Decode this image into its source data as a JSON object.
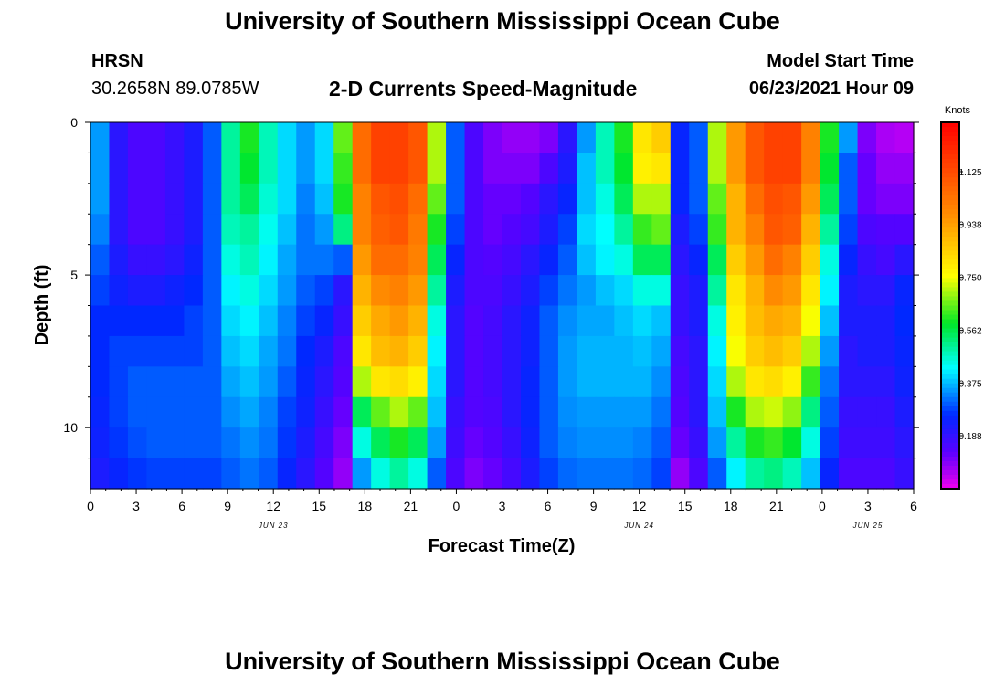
{
  "page": {
    "title_top": "University of Southern Mississippi Ocean Cube",
    "title_bottom": "University of Southern Mississippi Ocean Cube",
    "station_name": "HRSN",
    "station_coords": "30.2658N  89.0785W",
    "plot_title": "2-D Currents Speed-Magnitude",
    "model_start_label": "Model Start Time",
    "model_start_value": "06/23/2021 Hour 09"
  },
  "chart_data": {
    "type": "heatmap",
    "title": "2-D Currents Speed-Magnitude",
    "xlabel": "Forecast Time(Z)",
    "ylabel": "Depth (ft)",
    "x_tick_labels": [
      "0",
      "3",
      "6",
      "9",
      "12",
      "15",
      "18",
      "21",
      "0",
      "3",
      "6",
      "9",
      "12",
      "15",
      "18",
      "21",
      "0",
      "3",
      "6"
    ],
    "x_hours": [
      0,
      3,
      6,
      9,
      12,
      15,
      18,
      21,
      24,
      27,
      30,
      33,
      36,
      39,
      42,
      45,
      48,
      51,
      54
    ],
    "xlim": [
      0,
      54
    ],
    "day_labels": [
      {
        "label": "JUN 23",
        "hour": 12
      },
      {
        "label": "JUN 24",
        "hour": 36
      },
      {
        "label": "JUN 25",
        "hour": 51
      }
    ],
    "y_tick_labels": [
      "0",
      "5",
      "10"
    ],
    "y_tick_values": [
      0,
      5,
      10
    ],
    "ylim": [
      0,
      12
    ],
    "depths": [
      0,
      1,
      2,
      3,
      4,
      5,
      6,
      7,
      8,
      9,
      10,
      11
    ],
    "colorbar": {
      "title": "Knots",
      "min": 0,
      "max": 1.3,
      "tick_labels": [
        "0.188",
        "0.375",
        "0.562",
        "0.750",
        "0.938",
        "1.125"
      ],
      "tick_values": [
        0.188,
        0.375,
        0.562,
        0.75,
        0.938,
        1.125
      ]
    },
    "values": [
      [
        0.35,
        0.2,
        0.15,
        0.15,
        0.18,
        0.22,
        0.3,
        0.5,
        0.6,
        0.48,
        0.4,
        0.35,
        0.4,
        0.65,
        1.05,
        1.15,
        1.15,
        1.1,
        0.7,
        0.3,
        0.15,
        0.1,
        0.08,
        0.08,
        0.1,
        0.2,
        0.35,
        0.48,
        0.6,
        0.8,
        0.85,
        0.25,
        0.3,
        0.7,
        0.95,
        1.1,
        1.15,
        1.15,
        1.0,
        0.6,
        0.35,
        0.1,
        0.06,
        0.05
      ],
      [
        0.35,
        0.2,
        0.15,
        0.15,
        0.18,
        0.22,
        0.3,
        0.5,
        0.58,
        0.48,
        0.4,
        0.35,
        0.4,
        0.62,
        1.05,
        1.15,
        1.15,
        1.1,
        0.7,
        0.3,
        0.15,
        0.1,
        0.1,
        0.1,
        0.15,
        0.22,
        0.38,
        0.48,
        0.58,
        0.78,
        0.8,
        0.25,
        0.3,
        0.7,
        0.95,
        1.1,
        1.15,
        1.15,
        1.0,
        0.58,
        0.3,
        0.12,
        0.08,
        0.08
      ],
      [
        0.35,
        0.2,
        0.15,
        0.15,
        0.18,
        0.22,
        0.3,
        0.5,
        0.55,
        0.46,
        0.4,
        0.33,
        0.38,
        0.6,
        1.0,
        1.1,
        1.12,
        1.05,
        0.65,
        0.3,
        0.15,
        0.12,
        0.12,
        0.14,
        0.2,
        0.25,
        0.38,
        0.45,
        0.55,
        0.7,
        0.7,
        0.25,
        0.3,
        0.65,
        0.9,
        1.05,
        1.12,
        1.1,
        0.95,
        0.55,
        0.3,
        0.12,
        0.1,
        0.1
      ],
      [
        0.33,
        0.2,
        0.15,
        0.15,
        0.18,
        0.22,
        0.3,
        0.48,
        0.5,
        0.44,
        0.38,
        0.32,
        0.35,
        0.52,
        1.0,
        1.08,
        1.1,
        1.02,
        0.6,
        0.28,
        0.15,
        0.12,
        0.14,
        0.16,
        0.22,
        0.28,
        0.4,
        0.43,
        0.5,
        0.62,
        0.65,
        0.22,
        0.28,
        0.62,
        0.9,
        1.0,
        1.1,
        1.08,
        0.9,
        0.5,
        0.28,
        0.15,
        0.14,
        0.14
      ],
      [
        0.3,
        0.22,
        0.18,
        0.18,
        0.2,
        0.24,
        0.3,
        0.45,
        0.48,
        0.42,
        0.36,
        0.32,
        0.32,
        0.3,
        0.95,
        1.05,
        1.05,
        1.0,
        0.55,
        0.25,
        0.15,
        0.14,
        0.16,
        0.2,
        0.25,
        0.3,
        0.38,
        0.42,
        0.45,
        0.55,
        0.55,
        0.2,
        0.25,
        0.55,
        0.85,
        0.95,
        1.05,
        1.0,
        0.85,
        0.45,
        0.25,
        0.18,
        0.16,
        0.2
      ],
      [
        0.28,
        0.24,
        0.22,
        0.22,
        0.24,
        0.26,
        0.3,
        0.42,
        0.45,
        0.4,
        0.35,
        0.3,
        0.28,
        0.2,
        0.9,
        0.98,
        1.0,
        0.95,
        0.5,
        0.22,
        0.15,
        0.15,
        0.18,
        0.22,
        0.28,
        0.32,
        0.35,
        0.38,
        0.4,
        0.45,
        0.45,
        0.18,
        0.22,
        0.5,
        0.8,
        0.9,
        0.98,
        0.95,
        0.8,
        0.42,
        0.22,
        0.2,
        0.2,
        0.25
      ],
      [
        0.26,
        0.26,
        0.26,
        0.26,
        0.26,
        0.28,
        0.3,
        0.4,
        0.42,
        0.38,
        0.33,
        0.28,
        0.25,
        0.18,
        0.85,
        0.92,
        0.95,
        0.9,
        0.45,
        0.2,
        0.14,
        0.16,
        0.2,
        0.24,
        0.3,
        0.34,
        0.36,
        0.36,
        0.38,
        0.4,
        0.38,
        0.18,
        0.22,
        0.45,
        0.78,
        0.88,
        0.92,
        0.9,
        0.75,
        0.38,
        0.22,
        0.22,
        0.22,
        0.26
      ],
      [
        0.26,
        0.28,
        0.28,
        0.28,
        0.28,
        0.28,
        0.3,
        0.38,
        0.4,
        0.36,
        0.32,
        0.26,
        0.22,
        0.15,
        0.8,
        0.88,
        0.9,
        0.85,
        0.42,
        0.2,
        0.14,
        0.16,
        0.2,
        0.24,
        0.3,
        0.35,
        0.37,
        0.37,
        0.37,
        0.38,
        0.36,
        0.16,
        0.2,
        0.42,
        0.75,
        0.85,
        0.88,
        0.85,
        0.7,
        0.35,
        0.2,
        0.22,
        0.22,
        0.25
      ],
      [
        0.26,
        0.28,
        0.3,
        0.3,
        0.3,
        0.3,
        0.3,
        0.36,
        0.38,
        0.35,
        0.3,
        0.25,
        0.2,
        0.14,
        0.7,
        0.8,
        0.82,
        0.78,
        0.4,
        0.2,
        0.14,
        0.16,
        0.2,
        0.25,
        0.3,
        0.35,
        0.37,
        0.37,
        0.37,
        0.37,
        0.34,
        0.15,
        0.2,
        0.4,
        0.7,
        0.8,
        0.82,
        0.78,
        0.62,
        0.32,
        0.2,
        0.2,
        0.2,
        0.24
      ],
      [
        0.25,
        0.28,
        0.3,
        0.3,
        0.3,
        0.3,
        0.3,
        0.34,
        0.36,
        0.33,
        0.28,
        0.24,
        0.18,
        0.12,
        0.55,
        0.65,
        0.7,
        0.65,
        0.38,
        0.18,
        0.14,
        0.15,
        0.2,
        0.25,
        0.3,
        0.34,
        0.35,
        0.35,
        0.35,
        0.35,
        0.32,
        0.14,
        0.2,
        0.38,
        0.6,
        0.7,
        0.72,
        0.68,
        0.52,
        0.3,
        0.18,
        0.18,
        0.18,
        0.22
      ],
      [
        0.24,
        0.27,
        0.29,
        0.3,
        0.3,
        0.3,
        0.3,
        0.32,
        0.34,
        0.32,
        0.27,
        0.22,
        0.16,
        0.1,
        0.45,
        0.55,
        0.6,
        0.55,
        0.35,
        0.17,
        0.12,
        0.14,
        0.18,
        0.24,
        0.3,
        0.33,
        0.34,
        0.34,
        0.34,
        0.33,
        0.3,
        0.12,
        0.18,
        0.35,
        0.5,
        0.6,
        0.62,
        0.58,
        0.45,
        0.28,
        0.17,
        0.17,
        0.17,
        0.2
      ],
      [
        0.22,
        0.25,
        0.27,
        0.28,
        0.28,
        0.28,
        0.28,
        0.3,
        0.32,
        0.3,
        0.25,
        0.2,
        0.14,
        0.08,
        0.35,
        0.45,
        0.5,
        0.45,
        0.3,
        0.15,
        0.1,
        0.12,
        0.16,
        0.22,
        0.28,
        0.31,
        0.32,
        0.32,
        0.32,
        0.31,
        0.28,
        0.08,
        0.15,
        0.3,
        0.42,
        0.5,
        0.52,
        0.48,
        0.38,
        0.25,
        0.15,
        0.15,
        0.15,
        0.18
      ]
    ]
  }
}
